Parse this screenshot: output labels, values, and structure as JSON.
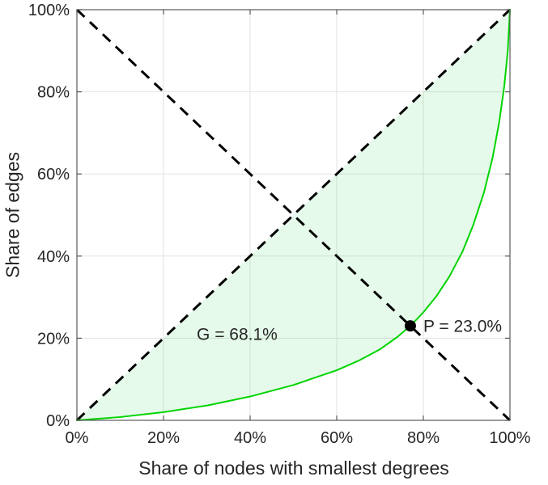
{
  "chart_data": {
    "type": "line",
    "title": "",
    "xlabel": "Share of nodes with smallest degrees",
    "ylabel": "Share of edges",
    "xlim": [
      0,
      100
    ],
    "ylim": [
      0,
      100
    ],
    "xticks": [
      0,
      20,
      40,
      60,
      80,
      100
    ],
    "yticks": [
      0,
      20,
      40,
      60,
      80,
      100
    ],
    "xtick_labels": [
      "0%",
      "20%",
      "40%",
      "60%",
      "80%",
      "100%"
    ],
    "ytick_labels": [
      "0%",
      "20%",
      "40%",
      "60%",
      "80%",
      "100%"
    ],
    "grid": true,
    "grid_color": "#e2e2e2",
    "axis_color": "#595959",
    "fill_color": "#00cc33",
    "fill_opacity": 0.1,
    "series": [
      {
        "name": "lorenz-curve",
        "color": "#00d400",
        "width": 2,
        "x": [
          0,
          10,
          20,
          30,
          40,
          50,
          60,
          65,
          70,
          74,
          77,
          80,
          83,
          86,
          89,
          91.5,
          94,
          96,
          97.5,
          98.7,
          99.5,
          100
        ],
        "y": [
          0,
          0.8,
          2.0,
          3.6,
          5.8,
          8.6,
          12.2,
          14.5,
          17.3,
          20.3,
          23.0,
          26.3,
          30.2,
          35.0,
          41.0,
          47.5,
          55.5,
          64.0,
          72.5,
          81.5,
          90.0,
          100
        ]
      }
    ],
    "reference_lines": [
      {
        "name": "equality-diagonal-line",
        "from": [
          0,
          0
        ],
        "to": [
          100,
          100
        ],
        "style": "dashed",
        "color": "#000000",
        "width": 3
      },
      {
        "name": "anti-diagonal-line",
        "from": [
          0,
          100
        ],
        "to": [
          100,
          0
        ],
        "style": "dashed",
        "color": "#000000",
        "width": 3
      }
    ],
    "marker": {
      "name": "intersection-point",
      "x": 77,
      "y": 23,
      "color": "#000000",
      "radius": 7
    },
    "annotations": [
      {
        "name": "gini-annotation",
        "text": "G = 68.1%",
        "x": 37,
        "y": 21,
        "anchor": "middle",
        "dx": 0,
        "dy": 0
      },
      {
        "name": "p-annotation",
        "text": "P = 23.0%",
        "x": 77,
        "y": 23,
        "anchor": "start",
        "dx": 16,
        "dy": 0
      }
    ],
    "gini_percent": 68.1,
    "p_percent": 23.0
  }
}
